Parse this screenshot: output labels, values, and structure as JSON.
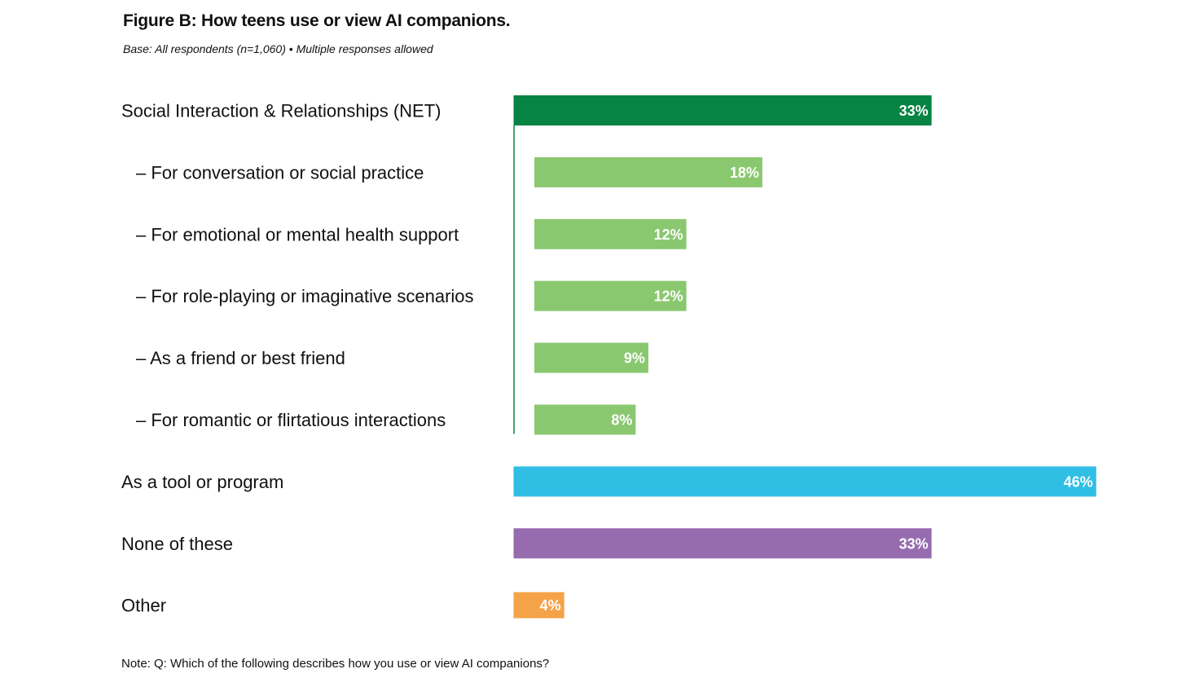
{
  "chart_data": {
    "type": "bar",
    "orientation": "horizontal",
    "title": "Figure B: How teens use or view AI companions.",
    "subtitle": "Base: All respondents (n=1,060) • Multiple responses allowed",
    "note": "Note: Q: Which of the following describes how you use or view AI companions?",
    "xlim": [
      0,
      46
    ],
    "categories": [
      "Social Interaction & Relationships (NET)",
      "– For conversation or social practice",
      "– For emotional or mental health support",
      "– For role-playing or imaginative scenarios",
      "– As a friend or best friend",
      "– For romantic or flirtatious interactions",
      "As a tool or program",
      "None of these",
      "Other"
    ],
    "values": [
      33,
      18,
      12,
      12,
      9,
      8,
      46,
      33,
      4
    ],
    "value_labels": [
      "33%",
      "18%",
      "12%",
      "12%",
      "9%",
      "8%",
      "46%",
      "33%",
      "4%"
    ],
    "sub_item": [
      false,
      true,
      true,
      true,
      true,
      true,
      false,
      false,
      false
    ],
    "colors": [
      "#068443",
      "#8AC870",
      "#8AC870",
      "#8AC870",
      "#8AC870",
      "#8AC870",
      "#31BEE5",
      "#966CAF",
      "#F5A349"
    ],
    "bracket_color": "#068443"
  }
}
